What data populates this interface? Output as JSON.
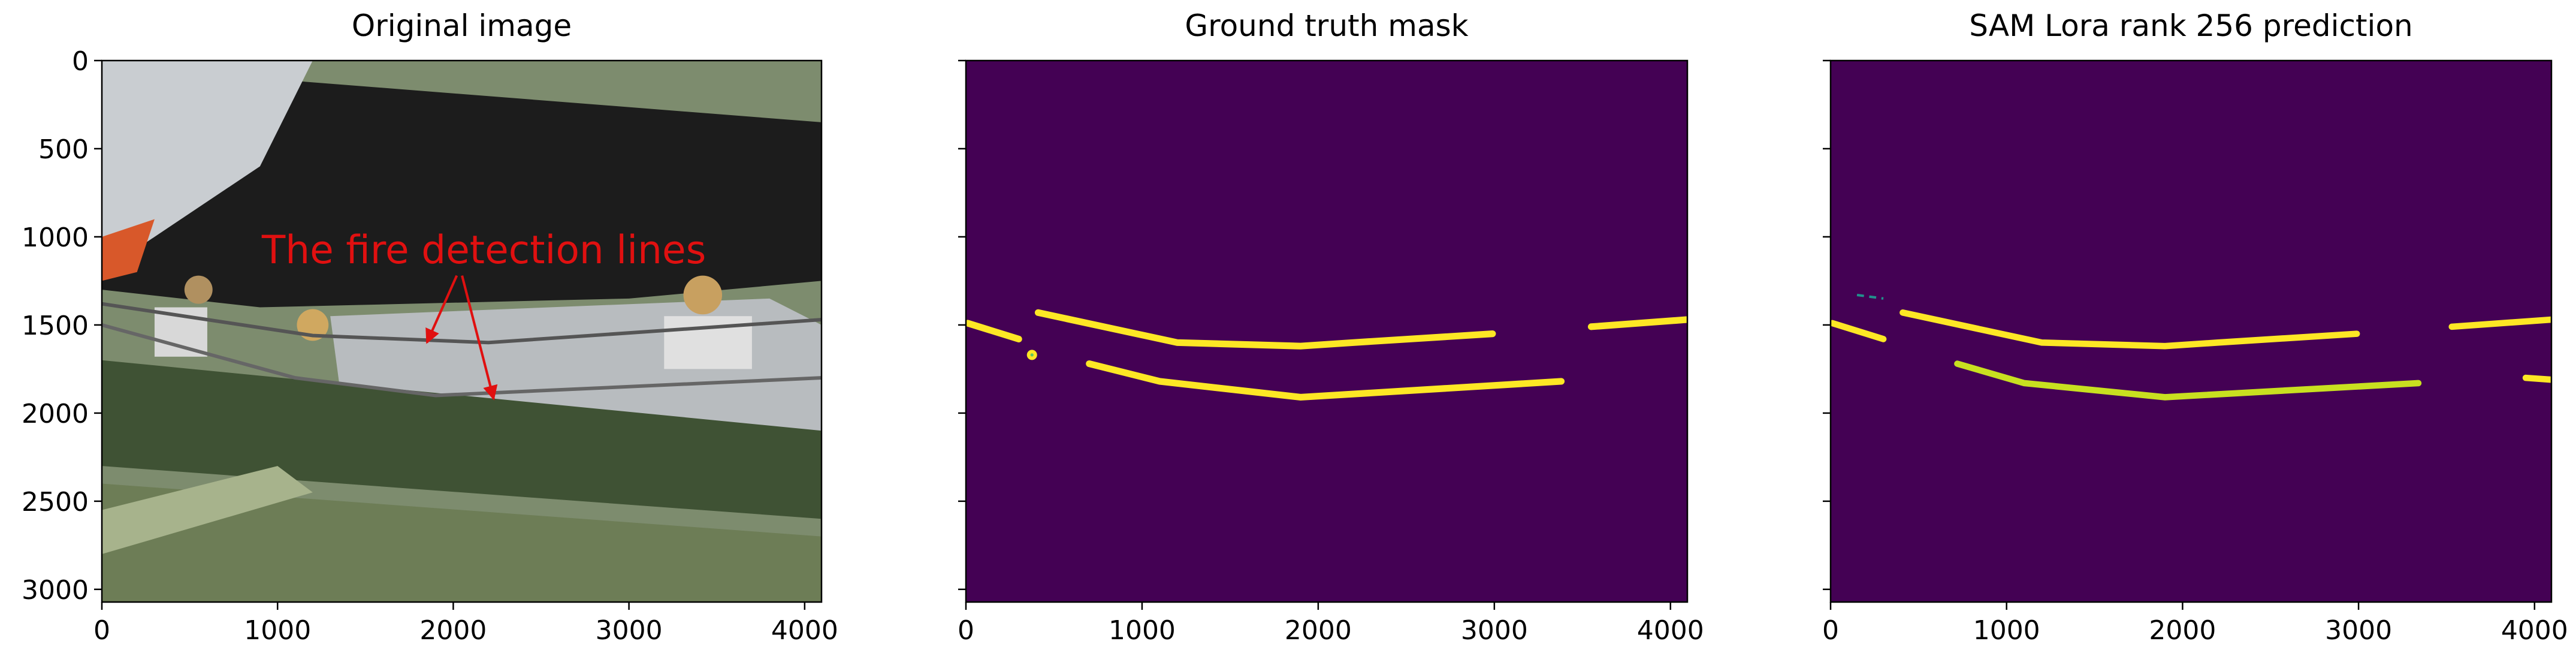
{
  "chart_data": [
    {
      "type": "image",
      "title": "Original image",
      "annotation": "The fire detection lines",
      "xlim": [
        0,
        4096
      ],
      "ylim": [
        3072,
        0
      ],
      "xticks": [
        0,
        1000,
        2000,
        3000,
        4000
      ],
      "yticks": [
        0,
        500,
        1000,
        1500,
        2000,
        2500,
        3000
      ]
    },
    {
      "type": "image",
      "title": "Ground truth mask",
      "xlim": [
        0,
        4096
      ],
      "ylim": [
        3072,
        0
      ],
      "xticks": [
        0,
        1000,
        2000,
        3000,
        4000
      ],
      "yticks": [
        0,
        500,
        1000,
        1500,
        2000,
        2500,
        3000
      ]
    },
    {
      "type": "image",
      "title": "SAM Lora rank 256 prediction",
      "xlim": [
        0,
        4096
      ],
      "ylim": [
        3072,
        0
      ],
      "xticks": [
        0,
        1000,
        2000,
        3000,
        4000
      ],
      "yticks": [
        0,
        500,
        1000,
        1500,
        2000,
        2500,
        3000
      ]
    }
  ]
}
